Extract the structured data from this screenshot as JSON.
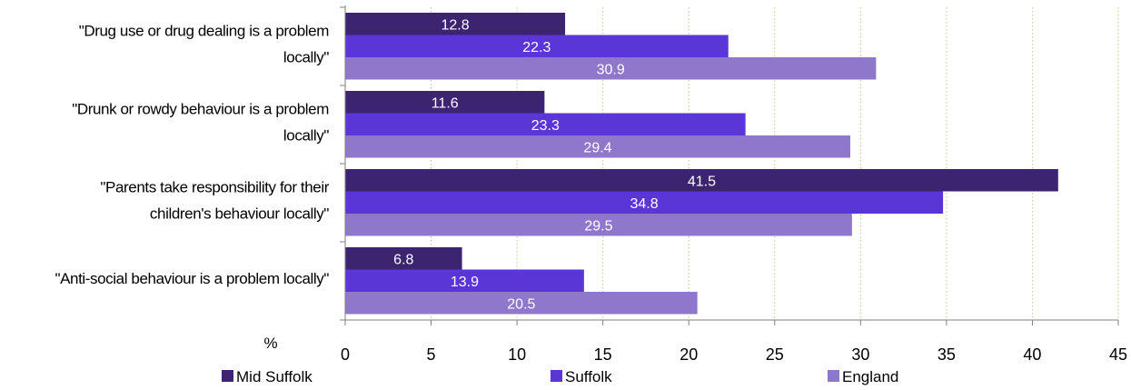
{
  "chart_data": {
    "type": "bar",
    "orientation": "horizontal",
    "categories": [
      [
        "\"Drug use or drug dealing is a problem",
        "locally\""
      ],
      [
        "\"Drunk or rowdy behaviour is a problem",
        "locally\""
      ],
      [
        "\"Parents take responsibility for their",
        "children's behaviour locally\""
      ],
      [
        "\"Anti-social behaviour is a problem locally\""
      ]
    ],
    "series": [
      {
        "name": "Mid Suffolk",
        "color": "#3d2470",
        "values": [
          12.8,
          11.6,
          41.5,
          6.8
        ]
      },
      {
        "name": "Suffolk",
        "color": "#5a36d6",
        "values": [
          22.3,
          23.3,
          34.8,
          13.9
        ]
      },
      {
        "name": "England",
        "color": "#8f78cc",
        "values": [
          30.9,
          29.4,
          29.5,
          20.5
        ]
      }
    ],
    "xlim": [
      0,
      45
    ],
    "xticks": [
      0,
      5,
      10,
      15,
      20,
      25,
      30,
      35,
      40,
      45
    ],
    "xlabel": "%",
    "gridlines": "vertical dotted",
    "legend_position": "bottom"
  }
}
